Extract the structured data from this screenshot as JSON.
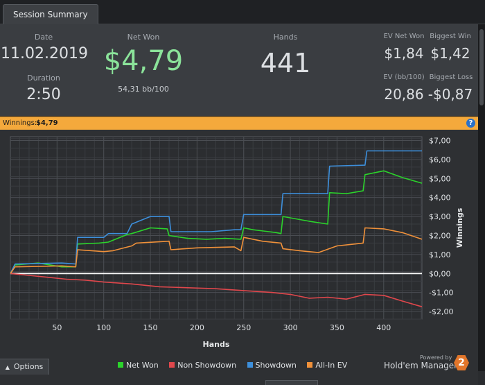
{
  "tab": {
    "label": "Session Summary"
  },
  "summary": {
    "date_label": "Date",
    "date_value": "11.02.2019",
    "duration_label": "Duration",
    "duration_value": "2:50",
    "netwon_label": "Net Won",
    "netwon_value": "$4,79",
    "netwon_sub": "54,31 bb/100",
    "hands_label": "Hands",
    "hands_value": "441",
    "ev_netwon_label": "EV Net Won",
    "ev_netwon_value": "$1,84",
    "biggest_win_label": "Biggest Win",
    "biggest_win_value": "$1,42",
    "ev_bb_label": "EV (bb/100)",
    "ev_bb_value": "20,86",
    "biggest_loss_label": "Biggest Loss",
    "biggest_loss_value": "-$0,87"
  },
  "winnings_bar": {
    "label": "Winnings:",
    "value": "$4,79"
  },
  "colors": {
    "net_won": "#2bd32b",
    "non_showdown": "#e0474c",
    "showdown": "#3d8fdb",
    "all_in_ev": "#f0913a",
    "accent_green": "#8be39a"
  },
  "chart_data": {
    "type": "line",
    "title": "",
    "xlabel": "Hands",
    "ylabel": "Winnings",
    "xlim": [
      0,
      441
    ],
    "ylim": [
      -2.4,
      7.2
    ],
    "x_ticks": [
      50,
      100,
      150,
      200,
      250,
      300,
      350,
      400
    ],
    "x_tick_labels": [
      "50",
      "100",
      "150",
      "200",
      "250",
      "300",
      "350",
      "400"
    ],
    "y_ticks": [
      7,
      6,
      5,
      4,
      3,
      2,
      1,
      0,
      -1,
      -2
    ],
    "y_tick_labels": [
      "$7,00",
      "$6,00",
      "$5,00",
      "$4,00",
      "$3,00",
      "$2,00",
      "$1,00",
      "$0,00",
      "-$1,00",
      "-$2,00"
    ],
    "grid": true,
    "legend_position": "bottom",
    "series": [
      {
        "name": "Net Won",
        "color": "#2bd32b",
        "x": [
          0,
          5,
          30,
          55,
          70,
          72,
          95,
          105,
          125,
          130,
          150,
          168,
          170,
          190,
          210,
          230,
          247,
          250,
          260,
          285,
          290,
          292,
          320,
          340,
          342,
          360,
          378,
          380,
          400,
          420,
          441
        ],
        "y": [
          0,
          0.45,
          0.55,
          0.35,
          0.35,
          1.55,
          1.6,
          1.65,
          2.05,
          2.1,
          2.4,
          2.35,
          2.0,
          1.85,
          1.8,
          1.85,
          1.8,
          2.4,
          2.3,
          2.15,
          2.1,
          3.0,
          2.75,
          2.6,
          4.25,
          4.2,
          4.35,
          5.2,
          5.4,
          5.05,
          4.75
        ]
      },
      {
        "name": "Non Showdown",
        "color": "#e0474c",
        "x": [
          0,
          20,
          40,
          60,
          80,
          100,
          130,
          160,
          190,
          220,
          250,
          280,
          300,
          320,
          340,
          360,
          380,
          400,
          420,
          441
        ],
        "y": [
          0,
          -0.1,
          -0.2,
          -0.3,
          -0.35,
          -0.45,
          -0.55,
          -0.7,
          -0.75,
          -0.8,
          -0.9,
          -1.0,
          -1.1,
          -1.3,
          -1.25,
          -1.35,
          -1.1,
          -1.15,
          -1.45,
          -1.75
        ]
      },
      {
        "name": "Showdown",
        "color": "#3d8fdb",
        "x": [
          0,
          5,
          55,
          70,
          72,
          100,
          105,
          125,
          130,
          150,
          170,
          172,
          215,
          240,
          247,
          250,
          288,
          290,
          292,
          340,
          342,
          380,
          382,
          441
        ],
        "y": [
          0,
          0.5,
          0.55,
          0.5,
          1.9,
          1.9,
          2.1,
          2.1,
          2.6,
          3.0,
          3.0,
          2.2,
          2.2,
          2.3,
          2.3,
          3.1,
          3.1,
          3.1,
          4.2,
          4.2,
          5.65,
          5.7,
          6.45,
          6.45
        ]
      },
      {
        "name": "All-In EV",
        "color": "#f0913a",
        "x": [
          0,
          5,
          55,
          70,
          72,
          100,
          110,
          130,
          135,
          170,
          172,
          200,
          240,
          247,
          250,
          270,
          290,
          292,
          310,
          330,
          350,
          378,
          380,
          400,
          420,
          441
        ],
        "y": [
          0,
          0.35,
          0.4,
          0.35,
          1.25,
          1.15,
          1.2,
          1.45,
          1.6,
          1.7,
          1.25,
          1.35,
          1.4,
          1.2,
          1.9,
          1.7,
          1.6,
          1.3,
          1.2,
          1.1,
          1.45,
          1.6,
          2.4,
          2.35,
          2.15,
          1.8
        ]
      }
    ]
  },
  "legend": [
    {
      "label": "Net Won",
      "color": "#2bd32b"
    },
    {
      "label": "Non Showdown",
      "color": "#e0474c"
    },
    {
      "label": "Showdown",
      "color": "#3d8fdb"
    },
    {
      "label": "All-In EV",
      "color": "#f0913a"
    }
  ],
  "footer": {
    "options_label": "Options",
    "options_icon": "chevron-up-icon",
    "powered_by": "Powered by",
    "brand": "Hold'em Manager",
    "brand_badge": "2"
  }
}
